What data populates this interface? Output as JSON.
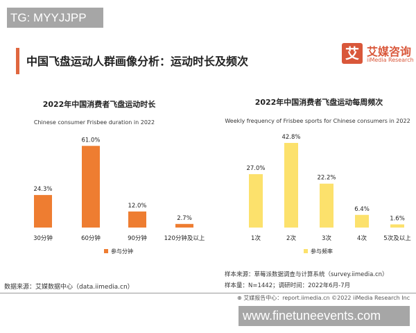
{
  "watermarks": {
    "top": "TG: MYYJJPP",
    "bottom": "www.finetuneevents.com"
  },
  "header": {
    "title": "中国飞盘运动人群画像分析：运动时长及频次",
    "logo_icon": "艾",
    "logo_cn": "艾媒咨询",
    "logo_en": "iiMedia Research"
  },
  "colors": {
    "accent": "#e0673f",
    "duration_bar": "#ee7d31",
    "frequency_bar": "#fce16c"
  },
  "chart_data": [
    {
      "type": "bar",
      "title": "2022年中国消费者飞盘运动时长",
      "subtitle": "Chinese consumer Frisbee duration in 2022",
      "categories": [
        "30分钟",
        "60分钟",
        "90分钟",
        "120分钟及以上"
      ],
      "series": [
        {
          "name": "参与分钟",
          "values": [
            24.3,
            61.0,
            12.0,
            2.7
          ]
        }
      ],
      "data_labels": [
        "24.3%",
        "61.0%",
        "12.0%",
        "2.7%"
      ],
      "unit": "%",
      "legend": "bottom"
    },
    {
      "type": "bar",
      "title": "2022年中国消费者飞盘运动每周频次",
      "subtitle": "Weekly frequency of Frisbee sports for Chinese consumers in 2022",
      "categories": [
        "1次",
        "2次",
        "3次",
        "4次",
        "5次及以上"
      ],
      "series": [
        {
          "name": "参与频率",
          "values": [
            27.0,
            42.8,
            22.2,
            6.4,
            1.6
          ]
        }
      ],
      "data_labels": [
        "27.0%",
        "42.8%",
        "22.2%",
        "6.4%",
        "1.6%"
      ],
      "unit": "%",
      "legend": "bottom"
    }
  ],
  "footer": {
    "source_left": "数据来源：艾媒数据中心（data.iimedia.cn）",
    "sample_source": "样本来源：草莓派数据调查与计算系统（survey.iimedia.cn）",
    "sample_size": "样本量：N=1442；调研时间：2022年6月-7月",
    "report": "艾媒报告中心：report.iimedia.cn   ©2022  iiMedia Research  Inc"
  }
}
